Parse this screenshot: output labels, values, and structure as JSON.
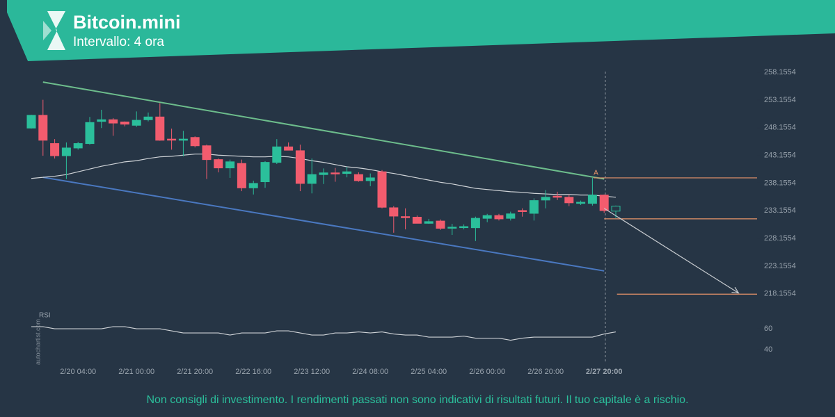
{
  "chart_data": {
    "type": "candlestick",
    "title": "Bitcoin.mini",
    "subtitle": "Intervallo: 4 ora",
    "watermark": "autochartist.com",
    "disclaimer": "Non consigli di investimento. I rendimenti passati non sono indicativi di risultati futuri. Il tuo capitale è a rischio.",
    "categories": [
      null,
      null,
      null,
      null,
      "2/20 04:00",
      null,
      null,
      null,
      null,
      "2/21 00:00",
      null,
      null,
      null,
      null,
      "2/21 20:00",
      null,
      null,
      null,
      null,
      "2/22 16:00",
      null,
      null,
      null,
      null,
      "2/23 12:00",
      null,
      null,
      null,
      null,
      "2/24 08:00",
      null,
      null,
      null,
      null,
      "2/25 04:00",
      null,
      null,
      null,
      null,
      "2/26 00:00",
      null,
      null,
      null,
      null,
      "2/26 20:00",
      null,
      null,
      null,
      null,
      "2/27 20:00",
      null
    ],
    "open": [
      248.1,
      250.4,
      245.3,
      243.1,
      244.5,
      245.3,
      249.3,
      249.6,
      249.2,
      248.6,
      249.6,
      250.1,
      246.1,
      245.9,
      246.4,
      244.9,
      242.4,
      240.9,
      241.7,
      237.3,
      238.4,
      241.9,
      244.7,
      244.0,
      238.1,
      239.7,
      240.0,
      239.9,
      239.7,
      238.6,
      240.2,
      233.7,
      232.1,
      232.0,
      230.9,
      231.3,
      230.1,
      230.2,
      230.1,
      231.8,
      232.3,
      231.8,
      233.2,
      232.7,
      235.1,
      235.8,
      235.6,
      234.5,
      234.5,
      236.0,
      233.1
    ],
    "high": [
      250.5,
      253.2,
      246.1,
      245.5,
      245.6,
      250.1,
      251.4,
      249.9,
      249.3,
      251.1,
      250.9,
      252.6,
      248.0,
      247.6,
      246.6,
      245.1,
      242.6,
      242.4,
      242.4,
      238.6,
      242.1,
      246.1,
      245.5,
      245.1,
      242.6,
      240.8,
      240.9,
      241.1,
      240.1,
      239.9,
      240.5,
      234.0,
      233.6,
      232.3,
      231.7,
      231.6,
      230.8,
      230.7,
      232.1,
      232.6,
      232.6,
      233.0,
      233.6,
      235.4,
      236.9,
      236.6,
      236.1,
      235.0,
      239.1,
      236.1,
      234.1
    ],
    "low": [
      248.0,
      243.1,
      242.6,
      238.9,
      244.2,
      245.1,
      248.1,
      246.7,
      248.4,
      248.3,
      249.3,
      245.8,
      244.2,
      243.0,
      244.6,
      238.9,
      240.1,
      239.1,
      236.7,
      236.1,
      237.3,
      241.6,
      244.1,
      236.7,
      236.3,
      238.0,
      238.4,
      239.2,
      238.4,
      237.6,
      233.6,
      229.2,
      229.8,
      230.9,
      230.8,
      229.7,
      228.8,
      229.8,
      227.7,
      231.1,
      231.4,
      231.4,
      232.1,
      231.4,
      233.6,
      235.1,
      234.0,
      234.2,
      234.1,
      232.8,
      231.9
    ],
    "close": [
      250.4,
      245.9,
      243.1,
      244.5,
      245.3,
      249.1,
      249.6,
      249.0,
      248.8,
      249.5,
      250.1,
      245.9,
      246.0,
      246.1,
      244.9,
      242.4,
      240.9,
      242.0,
      237.3,
      238.1,
      241.9,
      244.7,
      244.1,
      238.1,
      239.7,
      240.0,
      239.9,
      240.2,
      238.6,
      239.1,
      233.8,
      232.2,
      232.0,
      230.9,
      231.2,
      230.0,
      230.2,
      230.3,
      231.8,
      232.3,
      231.7,
      232.6,
      233.1,
      235.0,
      235.6,
      235.6,
      234.6,
      234.7,
      236.0,
      233.2,
      234.0
    ],
    "up_color": "#2bbf9b",
    "down_color": "#f25c6e",
    "ma": {
      "color": "#d0d4d8",
      "values": [
        239.0,
        239.2,
        239.4,
        239.7,
        240.2,
        240.7,
        241.2,
        241.6,
        242.0,
        242.2,
        242.6,
        242.9,
        243.0,
        243.2,
        243.4,
        243.4,
        243.2,
        243.1,
        243.0,
        242.9,
        242.9,
        243.0,
        242.9,
        242.6,
        242.2,
        241.9,
        241.5,
        241.1,
        240.9,
        240.6,
        240.2,
        239.9,
        239.5,
        239.1,
        238.7,
        238.3,
        238.0,
        237.6,
        237.2,
        237.0,
        236.8,
        236.6,
        236.5,
        236.3,
        236.2,
        236.1,
        236.1,
        236.0,
        236.0,
        235.8,
        235.6
      ]
    },
    "trendlines": [
      {
        "color": "#6dbd8c",
        "x": [
          1,
          49
        ],
        "values": [
          256.4,
          238.9
        ]
      },
      {
        "color": "#4a78c0",
        "x": [
          1,
          49
        ],
        "values": [
          239.2,
          222.3
        ]
      }
    ],
    "levels": [
      {
        "value": 239.1,
        "start": 48.1,
        "label": "A"
      },
      {
        "value": 231.7,
        "start": 49
      },
      {
        "value": 218.1,
        "start": 50.1
      }
    ],
    "level_color": "#e8956a",
    "forecast": {
      "color": "#c8ccd0",
      "x": [
        49,
        60.5
      ],
      "values": [
        233.6,
        218.3
      ]
    },
    "ylim": [
      216.0,
      259.3
    ],
    "yticks": [
      258.1554,
      253.1554,
      248.1554,
      243.1554,
      238.1554,
      233.1554,
      228.1554,
      223.1554,
      218.1554
    ],
    "rsi": {
      "label": "RSI",
      "color": "#d0d4d8",
      "ylim": [
        28.7,
        68.7
      ],
      "yticks": [
        60,
        40
      ],
      "values": [
        62,
        62,
        60,
        60,
        60,
        60,
        60,
        62,
        62,
        60,
        60,
        60,
        58,
        56,
        56,
        56,
        56,
        54,
        56,
        56,
        56,
        58,
        58,
        56,
        54,
        54,
        56,
        56,
        57,
        56,
        57,
        55,
        54,
        54,
        52,
        52,
        52,
        53,
        51,
        51,
        51,
        49,
        51,
        52,
        52,
        52,
        52,
        52,
        52,
        55,
        57
      ]
    }
  }
}
